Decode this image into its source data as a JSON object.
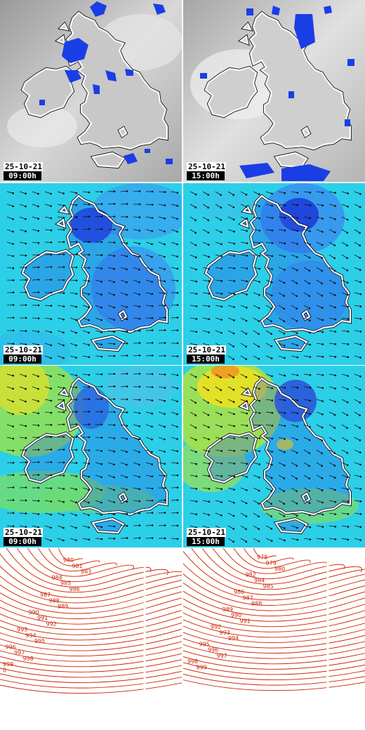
{
  "colors": {
    "coast": "#ffffff",
    "coast_outline": "#111111",
    "rain": "#1a3ee6",
    "cloud": "#bcbcbc",
    "wind_low": "#2fe0ee",
    "wind_mid": "#3a8cf0",
    "wind_high": "#1d3ed8",
    "gust_yellow": "#e8e020",
    "gust_green": "#7ee05a",
    "isobar": "#cc2200"
  },
  "rows": [
    {
      "kind": "cloud-rain",
      "panels": [
        {
          "date": "25-10-21",
          "time": "09:00h"
        },
        {
          "date": "25-10-21",
          "time": "15:00h"
        }
      ]
    },
    {
      "kind": "wind-speed",
      "panels": [
        {
          "date": "25-10-21",
          "time": "09:00h"
        },
        {
          "date": "25-10-21",
          "time": "15:00h"
        }
      ]
    },
    {
      "kind": "wind-gust",
      "panels": [
        {
          "date": "25-10-21",
          "time": "09:00h"
        },
        {
          "date": "25-10-21",
          "time": "15:00h"
        }
      ]
    },
    {
      "kind": "pressure",
      "panels": [
        {
          "isobar_labels": [
            "980",
            "981",
            "983",
            "984",
            "985",
            "986",
            "987",
            "988",
            "989",
            "990",
            "991",
            "992",
            "993",
            "994",
            "995",
            "996",
            "997",
            "998",
            "999",
            "0"
          ]
        },
        {
          "isobar_labels": [
            "978",
            "979",
            "980",
            "982",
            "984",
            "985",
            "986",
            "987",
            "988",
            "989",
            "990",
            "991",
            "992",
            "993",
            "994",
            "995",
            "996",
            "997",
            "998",
            "999"
          ]
        }
      ]
    }
  ]
}
